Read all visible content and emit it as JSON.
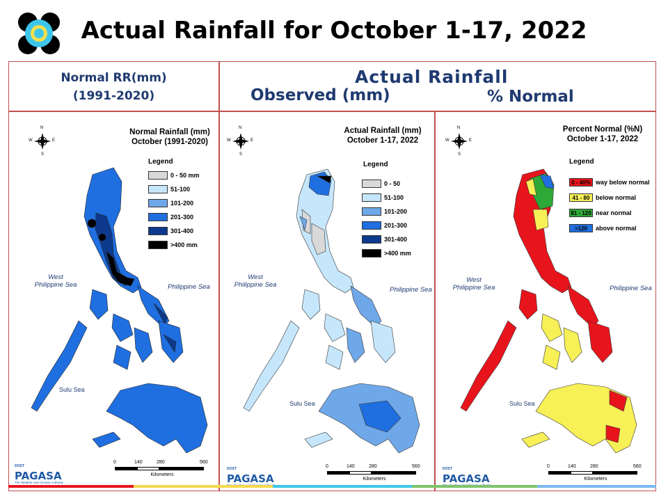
{
  "title": "Actual Rainfall for October 1-17, 2022",
  "header": {
    "left_line1": "Normal RR(mm)",
    "left_line2": "(1991-2020)",
    "actual": "Actual Rainfall",
    "observed": "Observed (mm)",
    "percent": "% Normal"
  },
  "panels": [
    {
      "title1": "Normal Rainfall (mm)",
      "title2": "October (1991-2020)",
      "legend_title": "Legend",
      "legend": [
        {
          "label": "0 - 50 mm",
          "color": "#d9d9d9"
        },
        {
          "label": "51-100",
          "color": "#c6e6fb"
        },
        {
          "label": "101-200",
          "color": "#6fa8e8"
        },
        {
          "label": "201-300",
          "color": "#1f6fe0"
        },
        {
          "label": "301-400",
          "color": "#0d3a8c"
        },
        {
          "label": ">400 mm",
          "color": "#000000"
        }
      ]
    },
    {
      "title1": "Actual Rainfall (mm)",
      "title2": "October 1-17, 2022",
      "legend_title": "Legend",
      "legend": [
        {
          "label": "0 - 50",
          "color": "#d9d9d9"
        },
        {
          "label": "51-100",
          "color": "#c6e6fb"
        },
        {
          "label": "101-200",
          "color": "#6fa8e8"
        },
        {
          "label": "201-300",
          "color": "#1f6fe0"
        },
        {
          "label": "301-400",
          "color": "#0d3a8c"
        },
        {
          "label": ">400 mm",
          "color": "#000000"
        }
      ]
    },
    {
      "title1": "Percent Normal (%N)",
      "title2": "October 1-17, 2022",
      "legend_title": "Legend",
      "legend": [
        {
          "swatch": "0 - 40%",
          "label": "way below normal",
          "color": "#e8141c"
        },
        {
          "swatch": "41 - 80",
          "label": "below normal",
          "color": "#f7f056"
        },
        {
          "swatch": "81 - 120",
          "label": "near normal",
          "color": "#2ea836"
        },
        {
          "swatch": ">120",
          "label": "above normal",
          "color": "#1f6fe0"
        }
      ]
    }
  ],
  "map_labels": {
    "west_sea_1": "West",
    "west_sea_2": "Philippine Sea",
    "philippine_sea": "Philippine Sea",
    "sulu_sea": "Sulu Sea",
    "compass_n": "N",
    "compass_s": "S",
    "compass_e": "E",
    "compass_w": "W"
  },
  "scale": {
    "ticks": [
      "0",
      "140",
      "280",
      "560"
    ],
    "unit": "Kilometers"
  },
  "brand": {
    "dost": "DOST",
    "name": "PAGASA",
    "tagline": "The Weather and Climate Authority"
  },
  "colors": {
    "header_text": "#1f3a70",
    "frame": "#c0504d"
  }
}
